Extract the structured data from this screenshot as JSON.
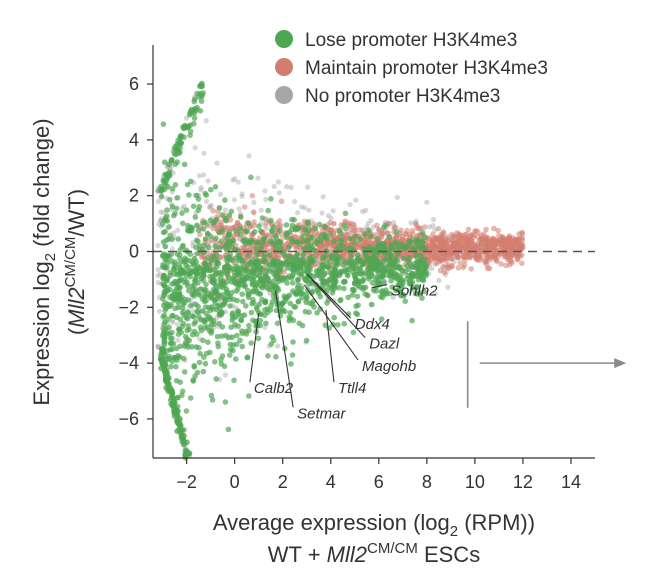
{
  "chart_data": {
    "type": "scatter",
    "title": "",
    "xlabel": {
      "main": "Average expression (log",
      "sub": "2",
      "rest": " (RPM))",
      "line2_prefix": "WT + ",
      "line2_italic": "Mll2",
      "line2_sup": "CM/CM",
      "line2_suffix": " ESCs"
    },
    "ylabel": {
      "line1_main": "Expression log",
      "line1_sub": "2",
      "line1_rest": " (fold change)",
      "line2_open": "(",
      "line2_italic": "Mll2",
      "line2_sup": "CM/CM",
      "line2_rest": "/WT)"
    },
    "xlim": [
      -3.4,
      15.0
    ],
    "ylim": [
      -7.4,
      7.4
    ],
    "xticks": [
      -2,
      0,
      2,
      4,
      6,
      8,
      10,
      12,
      14
    ],
    "xtick_labels": [
      "−2",
      "0",
      "2",
      "4",
      "6",
      "8",
      "10",
      "12",
      "14"
    ],
    "yticks": [
      6,
      4,
      2,
      0,
      -2,
      -4,
      -6
    ],
    "ytick_labels": [
      "6",
      "4",
      "2",
      "0",
      "−2",
      "−4",
      "−6"
    ],
    "reference_line_y": 0,
    "legend": [
      {
        "name": "Lose promoter H3K4me3",
        "color": "#4fa652"
      },
      {
        "name": "Maintain promoter H3K4me3",
        "color": "#d37d70"
      },
      {
        "name": "No promoter H3K4me3",
        "color": "#a7a7a7"
      }
    ],
    "series_colors": {
      "lose": "#4fa652",
      "maintain": "#d37d70",
      "none": "#a7a7a7"
    },
    "annotated_genes": [
      {
        "name": "Sohlh2",
        "x": 5.7,
        "y": -1.3,
        "lx": 6.5,
        "ly": -1.4
      },
      {
        "name": "Ddx4",
        "x": 3.0,
        "y": -0.8,
        "lx": 5.0,
        "ly": -2.6
      },
      {
        "name": "Dazl",
        "x": 3.2,
        "y": -1.0,
        "lx": 5.6,
        "ly": -3.3
      },
      {
        "name": "Magohb",
        "x": 2.9,
        "y": -1.2,
        "lx": 5.3,
        "ly": -4.1
      },
      {
        "name": "Ttll4",
        "x": 3.8,
        "y": -2.1,
        "lx": 4.3,
        "ly": -4.9
      },
      {
        "name": "Calb2",
        "x": 1.0,
        "y": -2.2,
        "lx": 0.8,
        "ly": -4.9
      },
      {
        "name": "Setmar",
        "x": 1.7,
        "y": -1.4,
        "lx": 2.6,
        "ly": -5.8
      }
    ],
    "inset_marker": {
      "vertical_x": 9.7,
      "vertical_y_range": [
        -2.5,
        -5.6
      ],
      "arrow_from_x": 10.2,
      "arrow_to_x": 16.3,
      "arrow_y": -4.0
    }
  }
}
